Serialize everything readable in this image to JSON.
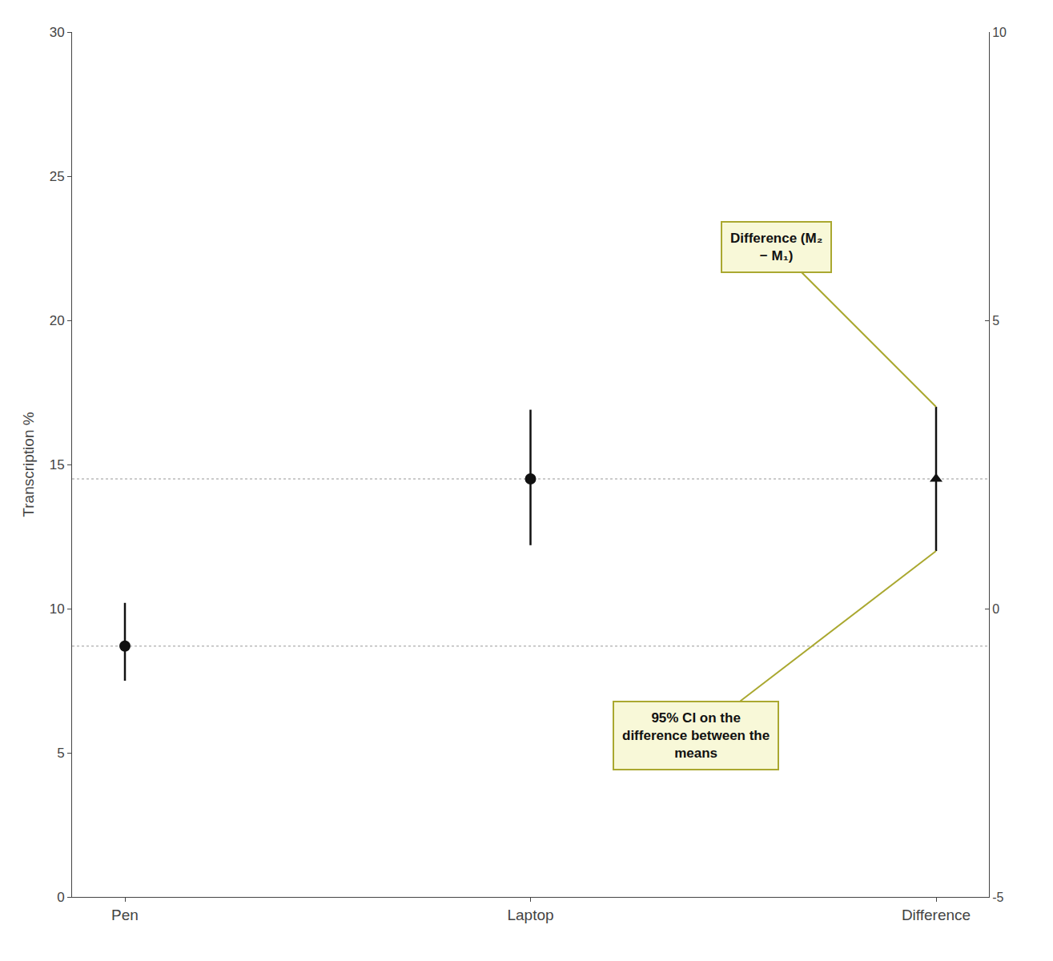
{
  "chart_data": {
    "type": "scatter",
    "categories": [
      "Pen",
      "Laptop",
      "Difference"
    ],
    "series": [
      {
        "values": [
          8.7,
          14.5,
          null
        ],
        "ci_lower": [
          7.5,
          12.2,
          null
        ],
        "ci_upper": [
          10.2,
          16.9,
          null
        ],
        "color": "#111111",
        "marker": "circle"
      },
      {
        "values": [
          null,
          null,
          14.5
        ],
        "ci_lower": [
          null,
          null,
          12.0
        ],
        "ci_upper": [
          null,
          null,
          17.0
        ],
        "color": "#111111",
        "marker": "triangle-up"
      }
    ],
    "ylabel": "Transcription %",
    "ylim": [
      0,
      30
    ],
    "yticks": [
      0,
      5,
      10,
      15,
      20,
      25,
      30
    ],
    "y2lim": [
      -5,
      10
    ],
    "y2ticks": [
      -5,
      0,
      5,
      10
    ],
    "grid": false,
    "hlines": {
      "values": [
        8.7,
        14.5
      ],
      "color": "#bbbbbb",
      "line_style": "dotted"
    },
    "annotations": [
      {
        "text": "Difference (M₂\n− M₁)",
        "x": "Difference",
        "y": 17.0,
        "color": "#aaa830"
      },
      {
        "text": "95% CI on the\ndifference between the\nmeans",
        "x": "Difference",
        "y": 12.0,
        "color": "#aaa830"
      }
    ]
  }
}
